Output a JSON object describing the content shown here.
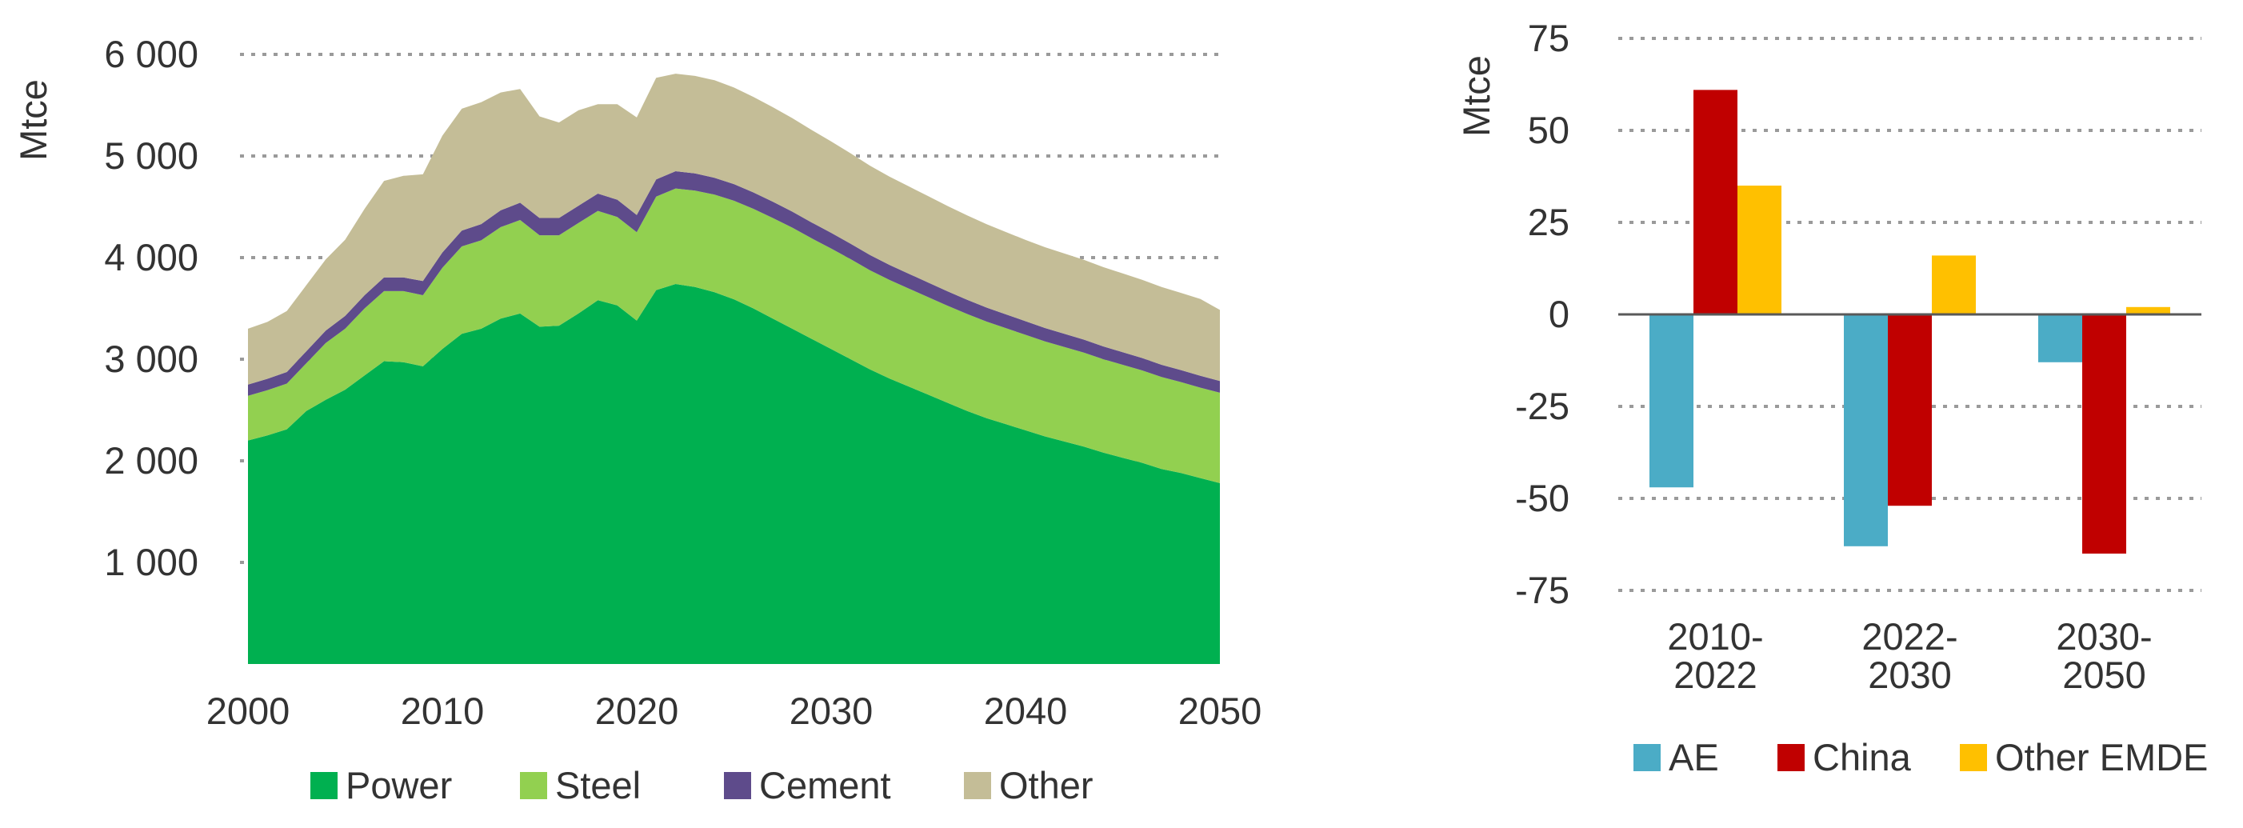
{
  "colors": {
    "power": "#00b050",
    "steel": "#92d050",
    "cement": "#5e4b8b",
    "other": "#c4bd97",
    "ae": "#4bacc6",
    "china": "#c00000",
    "other_emde": "#ffc000",
    "grid": "#9a9a9a",
    "text": "#333333"
  },
  "chart_data": [
    {
      "type": "area",
      "stacked": true,
      "title": "",
      "ylabel": "Mtce",
      "xlabel": "",
      "xlim": [
        2000,
        2050
      ],
      "ylim": [
        0,
        6000
      ],
      "x_ticks": [
        2000,
        2010,
        2020,
        2030,
        2040,
        2050
      ],
      "x_tick_labels": [
        "2000",
        "2010",
        "2020",
        "2030",
        "2040",
        "2050"
      ],
      "y_ticks": [
        1000,
        2000,
        3000,
        4000,
        5000,
        6000
      ],
      "y_tick_labels": [
        "1 000",
        "2 000",
        "3 000",
        "4 000",
        "5 000",
        "6 000"
      ],
      "grid": true,
      "legend_position": "bottom",
      "x": [
        2000,
        2001,
        2002,
        2003,
        2004,
        2005,
        2006,
        2007,
        2008,
        2009,
        2010,
        2011,
        2012,
        2013,
        2014,
        2015,
        2016,
        2017,
        2018,
        2019,
        2020,
        2021,
        2022,
        2023,
        2024,
        2025,
        2026,
        2027,
        2028,
        2029,
        2030,
        2031,
        2032,
        2033,
        2034,
        2035,
        2036,
        2037,
        2038,
        2039,
        2040,
        2041,
        2042,
        2043,
        2044,
        2045,
        2046,
        2047,
        2048,
        2049,
        2050
      ],
      "series": [
        {
          "name": "Power",
          "key": "power",
          "values": [
            2200,
            2250,
            2310,
            2490,
            2600,
            2700,
            2840,
            2980,
            2970,
            2930,
            3100,
            3250,
            3300,
            3400,
            3450,
            3320,
            3330,
            3450,
            3580,
            3530,
            3380,
            3680,
            3740,
            3710,
            3660,
            3590,
            3500,
            3400,
            3300,
            3200,
            3100,
            3000,
            2900,
            2810,
            2730,
            2650,
            2570,
            2490,
            2420,
            2360,
            2300,
            2240,
            2190,
            2140,
            2080,
            2030,
            1980,
            1920,
            1880,
            1830,
            1780
          ]
        },
        {
          "name": "Steel",
          "key": "steel",
          "values": [
            440,
            445,
            450,
            470,
            560,
            600,
            660,
            690,
            700,
            700,
            800,
            860,
            870,
            900,
            920,
            900,
            890,
            890,
            880,
            870,
            870,
            920,
            940,
            950,
            960,
            970,
            980,
            990,
            995,
            990,
            990,
            985,
            975,
            970,
            965,
            960,
            955,
            955,
            950,
            945,
            940,
            935,
            930,
            925,
            920,
            915,
            910,
            905,
            895,
            890,
            890
          ]
        },
        {
          "name": "Cement",
          "key": "cement",
          "values": [
            110,
            112,
            114,
            118,
            122,
            126,
            130,
            135,
            135,
            140,
            150,
            155,
            160,
            165,
            170,
            170,
            170,
            170,
            170,
            170,
            170,
            170,
            170,
            168,
            166,
            164,
            162,
            160,
            158,
            156,
            154,
            152,
            150,
            148,
            146,
            144,
            142,
            140,
            138,
            136,
            134,
            132,
            130,
            128,
            126,
            124,
            122,
            120,
            118,
            117,
            115
          ]
        },
        {
          "name": "Other",
          "key": "other",
          "values": [
            550,
            560,
            600,
            650,
            700,
            750,
            850,
            950,
            1000,
            1050,
            1150,
            1200,
            1200,
            1160,
            1120,
            1000,
            940,
            940,
            880,
            940,
            960,
            1000,
            960,
            960,
            960,
            950,
            940,
            930,
            920,
            910,
            900,
            890,
            880,
            870,
            860,
            850,
            840,
            830,
            820,
            810,
            800,
            795,
            790,
            785,
            780,
            775,
            770,
            765,
            760,
            755,
            700
          ]
        }
      ]
    },
    {
      "type": "bar",
      "title": "",
      "ylabel": "Mtce",
      "xlabel": "",
      "ylim": [
        -75,
        75
      ],
      "y_ticks": [
        -75,
        -50,
        -25,
        0,
        25,
        50,
        75
      ],
      "y_tick_labels": [
        "-75",
        "-50",
        "-25",
        "0",
        "25",
        "50",
        "75"
      ],
      "grid": true,
      "legend_position": "bottom",
      "categories": [
        {
          "line1": "2010-",
          "line2": "2022"
        },
        {
          "line1": "2022-",
          "line2": "2030"
        },
        {
          "line1": "2030-",
          "line2": "2050"
        }
      ],
      "series": [
        {
          "name": "AE",
          "key": "ae",
          "values": [
            -47,
            -63,
            -13
          ]
        },
        {
          "name": "China",
          "key": "china",
          "values": [
            61,
            -52,
            -65
          ]
        },
        {
          "name": "Other EMDE",
          "key": "other_emde",
          "values": [
            35,
            16,
            2
          ]
        }
      ]
    }
  ]
}
